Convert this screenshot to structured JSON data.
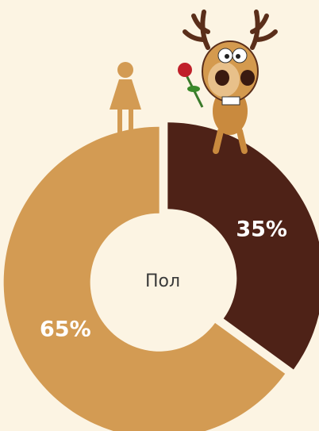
{
  "chart_data": {
    "type": "donut",
    "center_label": "Пол",
    "categories": [
      null,
      null
    ],
    "values": [
      35,
      65
    ],
    "value_labels": [
      "35%",
      "65%"
    ],
    "colors": [
      "#4e2217",
      "#d39b53"
    ]
  }
}
